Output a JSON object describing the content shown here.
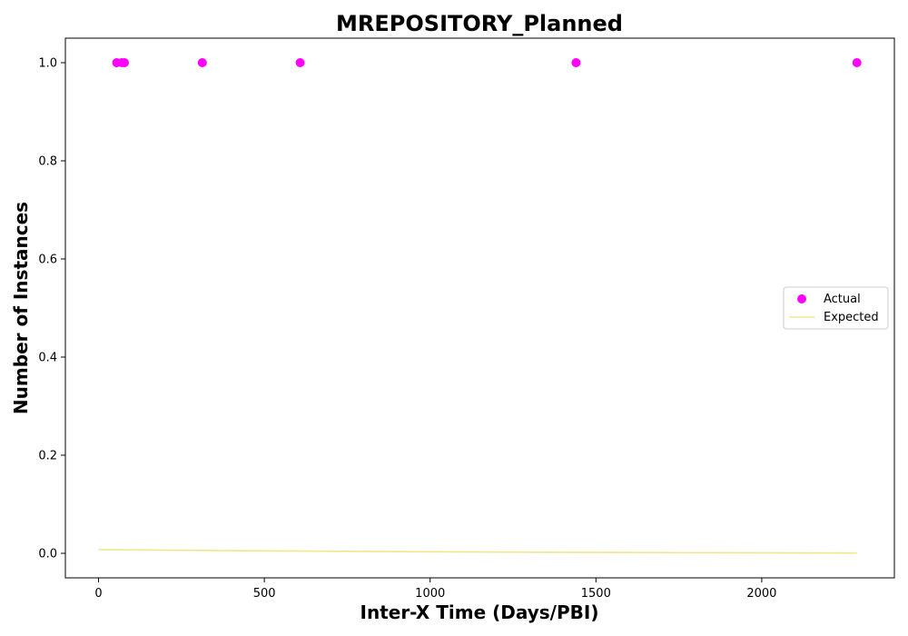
{
  "chart_data": {
    "type": "scatter",
    "title": "MREPOSITORY_Planned",
    "xlabel": "Inter-X Time (Days/PBI)",
    "ylabel": "Number of Instances",
    "xlim": [
      -100,
      2400
    ],
    "ylim": [
      -0.05,
      1.05
    ],
    "x_ticks": [
      0,
      500,
      1000,
      1500,
      2000
    ],
    "y_ticks": [
      0.0,
      0.2,
      0.4,
      0.6,
      0.8,
      1.0
    ],
    "x_tick_labels": [
      "0",
      "500",
      "1000",
      "1500",
      "2000"
    ],
    "y_tick_labels": [
      "0.0",
      "0.2",
      "0.4",
      "0.6",
      "0.8",
      "1.0"
    ],
    "grid": false,
    "legend_position": "center-right",
    "series": [
      {
        "name": "Actual",
        "kind": "scatter",
        "color": "#ff00ff",
        "x": [
          55,
          70,
          78,
          313,
          608,
          1440,
          2287
        ],
        "y": [
          1.0,
          1.0,
          1.0,
          1.0,
          1.0,
          1.0,
          1.0
        ]
      },
      {
        "name": "Expected",
        "kind": "line",
        "color": "#f0e68c",
        "x": [
          0,
          250,
          500,
          750,
          1000,
          1250,
          1500,
          1750,
          2000,
          2287
        ],
        "y": [
          0.0075,
          0.0062,
          0.005,
          0.004,
          0.0032,
          0.0025,
          0.0019,
          0.0014,
          0.001,
          0.0005
        ]
      }
    ]
  }
}
